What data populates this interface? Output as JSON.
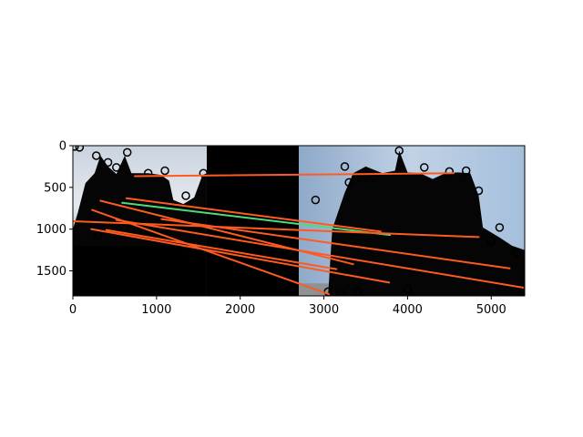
{
  "chart_data": {
    "type": "scatter",
    "title": "",
    "xlabel": "",
    "ylabel": "",
    "xlim": [
      0,
      5400
    ],
    "ylim": [
      1800,
      0
    ],
    "y_inverted": true,
    "grid": false,
    "legend": "none",
    "x_ticks": [
      0,
      1000,
      2000,
      3000,
      4000,
      5000
    ],
    "y_ticks": [
      0,
      500,
      1000,
      1500
    ],
    "background_image": {
      "description_free": true,
      "panels": [
        {
          "x": [
            0,
            1600
          ],
          "y": [
            0,
            1200
          ],
          "kind": "sky-photo"
        },
        {
          "x": [
            1600,
            2700
          ],
          "y": [
            0,
            1800
          ],
          "kind": "black"
        },
        {
          "x": [
            2700,
            5400
          ],
          "y": [
            0,
            1800
          ],
          "kind": "sky-photo"
        },
        {
          "x": [
            0,
            1600
          ],
          "y": [
            1200,
            1800
          ],
          "kind": "black"
        }
      ]
    },
    "match_lines": [
      {
        "x": [
          740,
          4550
        ],
        "y": [
          365,
          330
        ],
        "color": "#ff5a1f"
      },
      {
        "x": [
          590,
          3790
        ],
        "y": [
          685,
          1070
        ],
        "color": "#4ddc7a"
      },
      {
        "x": [
          640,
          3680
        ],
        "y": [
          630,
          1030
        ],
        "color": "#ff5a1f"
      },
      {
        "x": [
          0,
          4850
        ],
        "y": [
          905,
          1095
        ],
        "color": "#ff5a1f"
      },
      {
        "x": [
          330,
          3350
        ],
        "y": [
          660,
          1420
        ],
        "color": "#ff5a1f"
      },
      {
        "x": [
          1060,
          5220
        ],
        "y": [
          880,
          1470
        ],
        "color": "#ff5a1f"
      },
      {
        "x": [
          520,
          5380
        ],
        "y": [
          890,
          1700
        ],
        "color": "#ff5a1f"
      },
      {
        "x": [
          230,
          3060
        ],
        "y": [
          770,
          1780
        ],
        "color": "#ff5a1f"
      },
      {
        "x": [
          220,
          3780
        ],
        "y": [
          1000,
          1640
        ],
        "color": "#ff5a1f"
      },
      {
        "x": [
          400,
          3150
        ],
        "y": [
          1010,
          1480
        ],
        "color": "#ff5a1f"
      }
    ],
    "keypoints": [
      {
        "x": 20,
        "y": 10
      },
      {
        "x": 80,
        "y": 20
      },
      {
        "x": 280,
        "y": 120
      },
      {
        "x": 420,
        "y": 200
      },
      {
        "x": 520,
        "y": 260
      },
      {
        "x": 650,
        "y": 80
      },
      {
        "x": 900,
        "y": 330
      },
      {
        "x": 1100,
        "y": 300
      },
      {
        "x": 1350,
        "y": 600
      },
      {
        "x": 1560,
        "y": 330
      },
      {
        "x": 300,
        "y": 1080
      },
      {
        "x": 780,
        "y": 950
      },
      {
        "x": 3300,
        "y": 440
      },
      {
        "x": 3250,
        "y": 250
      },
      {
        "x": 3900,
        "y": 60
      },
      {
        "x": 4200,
        "y": 260
      },
      {
        "x": 4500,
        "y": 310
      },
      {
        "x": 4700,
        "y": 300
      },
      {
        "x": 4850,
        "y": 540
      },
      {
        "x": 5100,
        "y": 980
      },
      {
        "x": 5000,
        "y": 1140
      },
      {
        "x": 5300,
        "y": 1280
      },
      {
        "x": 2900,
        "y": 650
      },
      {
        "x": 3050,
        "y": 1750
      },
      {
        "x": 3200,
        "y": 1760
      },
      {
        "x": 3400,
        "y": 1750
      },
      {
        "x": 4000,
        "y": 1720
      },
      {
        "x": 5350,
        "y": 1700
      }
    ],
    "colors": {
      "lines": "#ff5a1f",
      "highlight_line": "#4ddc7a",
      "keypoints": "#000000"
    }
  }
}
